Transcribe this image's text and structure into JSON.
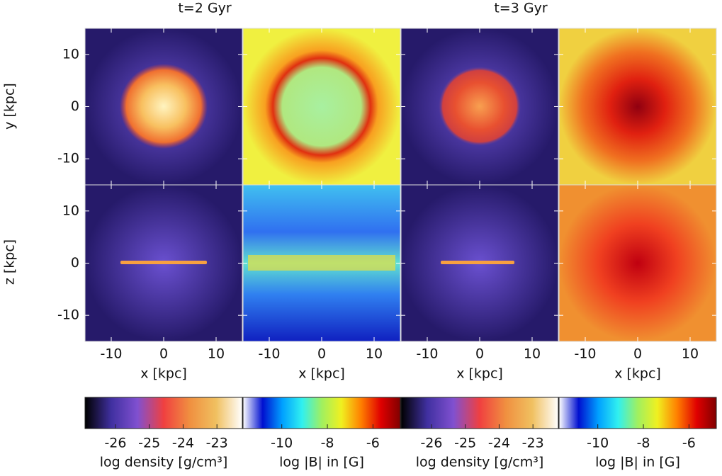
{
  "columns": [
    {
      "title": "t=2 Gyr"
    },
    {
      "title": "t=3 Gyr"
    }
  ],
  "axes": {
    "xlim": [
      -15,
      15
    ],
    "ylim": [
      -15,
      15
    ],
    "xticks": [
      -10,
      0,
      10
    ],
    "yticks": [
      -10,
      0,
      10
    ],
    "xlabel": "x [kpc]",
    "ylabels": [
      "y [kpc]",
      "z [kpc]"
    ]
  },
  "colorbars": [
    {
      "label": "log density [g/cm³]",
      "lim": [
        -26.9,
        -22.25
      ],
      "ticks": [
        -26,
        -25,
        -24,
        -23
      ],
      "colors": [
        "#000000",
        "#4030a0",
        "#8050d0",
        "#f04040",
        "#f09040",
        "#f0c060",
        "#ffffff"
      ]
    },
    {
      "label": "log |B| in [G]",
      "lim": [
        -11.7,
        -4.8
      ],
      "ticks": [
        -10,
        -8,
        -6
      ],
      "colors": [
        "#ffffff",
        "#0010d0",
        "#00a0ff",
        "#30f0f0",
        "#a0f060",
        "#f0f020",
        "#ff8000",
        "#e00000",
        "#800000"
      ]
    },
    {
      "label": "log density [g/cm³]",
      "lim": [
        -26.9,
        -22.25
      ],
      "ticks": [
        -26,
        -25,
        -24,
        -23
      ],
      "colors": [
        "#000000",
        "#4030a0",
        "#8050d0",
        "#f04040",
        "#f09040",
        "#f0c060",
        "#ffffff"
      ]
    },
    {
      "label": "log |B| in [G]",
      "lim": [
        -11.7,
        -4.8
      ],
      "ticks": [
        -10,
        -8,
        -6
      ],
      "colors": [
        "#ffffff",
        "#0010d0",
        "#00a0ff",
        "#30f0f0",
        "#a0f060",
        "#f0f020",
        "#ff8000",
        "#e00000",
        "#800000"
      ]
    }
  ]
}
